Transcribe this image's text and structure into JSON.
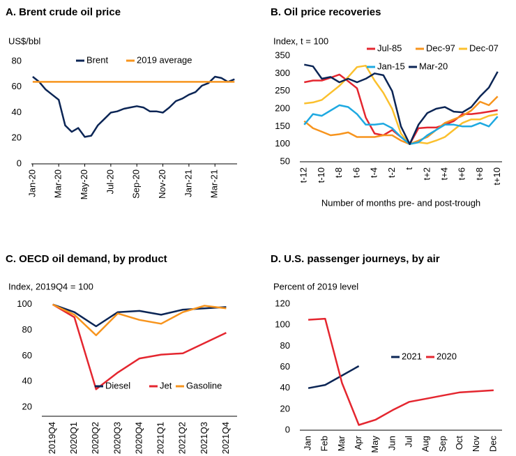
{
  "chart_data": [
    {
      "type": "line",
      "title": "A. Brent crude oil price",
      "y_label": "US$/bbl",
      "legend": "top",
      "x": [
        0,
        0.5,
        1,
        1.5,
        2,
        2.5,
        3,
        3.5,
        4,
        4.5,
        5,
        5.5,
        6,
        6.5,
        7,
        7.5,
        8,
        8.5,
        9,
        9.5,
        10,
        10.5,
        11,
        11.5,
        12,
        12.5,
        13,
        13.5,
        14,
        14.5,
        15,
        15.5
      ],
      "xlim": [
        -0.1,
        15.7
      ],
      "xticks": [
        {
          "value": 0,
          "label": "Jan-20"
        },
        {
          "value": 2,
          "label": "Mar-20"
        },
        {
          "value": 4,
          "label": "May-20"
        },
        {
          "value": 6,
          "label": "Jul-20"
        },
        {
          "value": 8,
          "label": "Sep-20"
        },
        {
          "value": 10,
          "label": "Nov-20"
        },
        {
          "value": 12,
          "label": "Jan-21"
        },
        {
          "value": 14,
          "label": "Mar-21"
        }
      ],
      "ylim": [
        0,
        80
      ],
      "yticks": [
        0,
        20,
        40,
        60,
        80
      ],
      "grid": false,
      "series": [
        {
          "name": "Brent",
          "color": "#0b2555",
          "values": [
            68,
            64,
            58,
            54,
            50,
            30,
            25,
            28,
            21,
            22,
            30,
            35,
            40,
            41,
            43,
            44,
            45,
            44,
            41,
            41,
            40,
            44,
            49,
            51,
            54,
            56,
            61,
            63,
            68,
            67,
            64,
            66
          ]
        },
        {
          "name": "2019 average",
          "color": "#f7941d",
          "values": [
            64,
            64,
            64,
            64,
            64,
            64,
            64,
            64,
            64,
            64,
            64,
            64,
            64,
            64,
            64,
            64,
            64,
            64,
            64,
            64,
            64,
            64,
            64,
            64,
            64,
            64,
            64,
            64,
            64,
            64,
            64,
            64
          ]
        }
      ]
    },
    {
      "type": "line",
      "title": "B. Oil price recoveries",
      "y_label": "Index, t = 100",
      "x_label": "Number of months pre- and post-trough",
      "legend": "top right",
      "categories": [
        "t-12",
        null,
        "t-10",
        null,
        "t-8",
        null,
        "t-6",
        null,
        "t-4",
        null,
        "t-2",
        null,
        "t",
        null,
        "t+2",
        null,
        "t+4",
        null,
        "t+6",
        null,
        "t+8",
        null,
        "t+10"
      ],
      "ylim": [
        50,
        350
      ],
      "yticks": [
        50,
        100,
        150,
        200,
        250,
        300,
        350
      ],
      "grid": false,
      "series": [
        {
          "name": "Jul-85",
          "color": "#e4262f",
          "values": [
            275,
            280,
            280,
            288,
            297,
            278,
            258,
            175,
            130,
            125,
            140,
            120,
            100,
            145,
            147,
            147,
            155,
            165,
            185,
            185,
            188,
            192,
            196
          ]
        },
        {
          "name": "Dec-97",
          "color": "#f7941d",
          "values": [
            165,
            145,
            135,
            125,
            128,
            133,
            120,
            120,
            120,
            125,
            125,
            110,
            100,
            110,
            120,
            140,
            160,
            170,
            180,
            195,
            220,
            210,
            235
          ]
        },
        {
          "name": "Dec-07",
          "color": "#fbc02d",
          "values": [
            215,
            218,
            225,
            245,
            265,
            290,
            318,
            322,
            280,
            245,
            200,
            130,
            100,
            105,
            102,
            110,
            120,
            140,
            160,
            170,
            170,
            180,
            185
          ]
        },
        {
          "name": "Jan-15",
          "color": "#1ea9e1",
          "values": [
            155,
            185,
            180,
            195,
            210,
            205,
            185,
            155,
            155,
            158,
            145,
            120,
            100,
            105,
            125,
            140,
            155,
            155,
            150,
            150,
            160,
            150,
            178
          ]
        },
        {
          "name": "Mar-20",
          "color": "#0b2555",
          "values": [
            325,
            320,
            285,
            290,
            275,
            285,
            275,
            285,
            300,
            295,
            250,
            150,
            100,
            155,
            188,
            200,
            205,
            192,
            190,
            205,
            235,
            260,
            305
          ]
        }
      ]
    },
    {
      "type": "line",
      "title": "C. OECD oil demand, by product",
      "y_label": "Index, 2019Q4 = 100",
      "legend": "bottom right",
      "categories": [
        "2019Q4",
        "2020Q1",
        "2020Q2",
        "2020Q3",
        "2020Q4",
        "2021Q1",
        "2021Q2",
        "2021Q3",
        "2021Q4"
      ],
      "ylim": [
        13,
        102
      ],
      "yticks": [
        20,
        40,
        60,
        80,
        100
      ],
      "grid": false,
      "series": [
        {
          "name": "Diesel",
          "color": "#0b2555",
          "values": [
            100,
            94,
            83,
            94,
            95,
            92,
            96,
            97,
            98
          ]
        },
        {
          "name": "Jet",
          "color": "#e4262f",
          "values": [
            100,
            90,
            34,
            47,
            58,
            61,
            62,
            70,
            78
          ]
        },
        {
          "name": "Gasoline",
          "color": "#f7941d",
          "values": [
            100,
            92,
            76,
            93,
            88,
            85,
            94,
            99,
            97
          ]
        }
      ]
    },
    {
      "type": "line",
      "title": "D. U.S. passenger journeys, by air",
      "y_label": "Percent of 2019 level",
      "legend": "center",
      "categories": [
        "Jan",
        "Feb",
        "Mar",
        "Apr",
        "May",
        "Jun",
        "Jul",
        "Aug",
        "Sep",
        "Oct",
        "Nov",
        "Dec"
      ],
      "ylim": [
        0,
        120
      ],
      "yticks": [
        0,
        20,
        40,
        60,
        80,
        100,
        120
      ],
      "grid": false,
      "series": [
        {
          "name": "2021",
          "color": "#0b2555",
          "values": [
            40,
            43,
            52,
            61,
            null,
            null,
            null,
            null,
            null,
            null,
            null,
            null
          ]
        },
        {
          "name": "2020",
          "color": "#e4262f",
          "values": [
            105,
            106,
            45,
            5,
            10,
            19,
            27,
            30,
            33,
            36,
            37,
            38
          ]
        }
      ]
    }
  ]
}
